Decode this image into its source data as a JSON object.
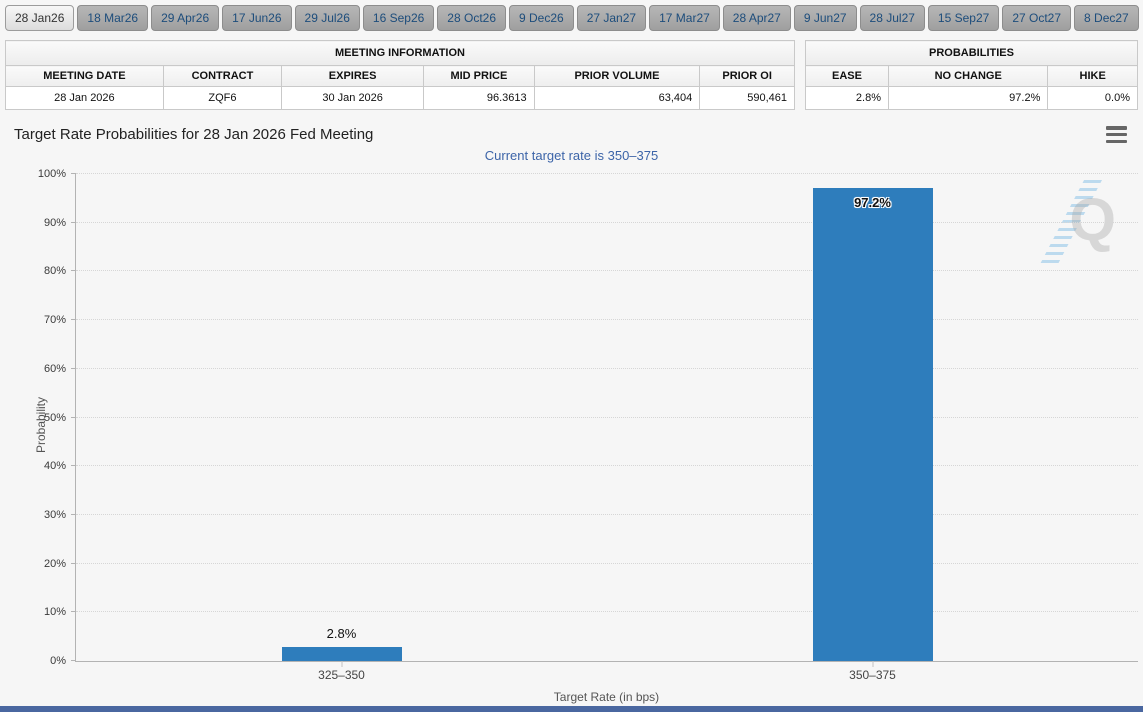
{
  "tabs": [
    {
      "label": "28 Jan26",
      "active": true
    },
    {
      "label": "18 Mar26",
      "active": false
    },
    {
      "label": "29 Apr26",
      "active": false
    },
    {
      "label": "17 Jun26",
      "active": false
    },
    {
      "label": "29 Jul26",
      "active": false
    },
    {
      "label": "16 Sep26",
      "active": false
    },
    {
      "label": "28 Oct26",
      "active": false
    },
    {
      "label": "9 Dec26",
      "active": false
    },
    {
      "label": "27 Jan27",
      "active": false
    },
    {
      "label": "17 Mar27",
      "active": false
    },
    {
      "label": "28 Apr27",
      "active": false
    },
    {
      "label": "9 Jun27",
      "active": false
    },
    {
      "label": "28 Jul27",
      "active": false
    },
    {
      "label": "15 Sep27",
      "active": false
    },
    {
      "label": "27 Oct27",
      "active": false
    },
    {
      "label": "8 Dec27",
      "active": false
    }
  ],
  "meeting_information": {
    "title": "MEETING INFORMATION",
    "columns": [
      "MEETING DATE",
      "CONTRACT",
      "EXPIRES",
      "MID PRICE",
      "PRIOR VOLUME",
      "PRIOR OI"
    ],
    "row": [
      "28 Jan 2026",
      "ZQF6",
      "30 Jan 2026",
      "96.3613",
      "63,404",
      "590,461"
    ]
  },
  "probabilities": {
    "title": "PROBABILITIES",
    "columns": [
      "EASE",
      "NO CHANGE",
      "HIKE"
    ],
    "row": [
      "2.8%",
      "97.2%",
      "0.0%"
    ]
  },
  "chart": {
    "watermark_letter": "Q",
    "menu_icon": "hamburger-icon"
  },
  "chart_data": {
    "type": "bar",
    "title": "Target Rate Probabilities for 28 Jan 2026 Fed Meeting",
    "subtitle": "Current target rate is 350–375",
    "categories": [
      "325–350",
      "350–375"
    ],
    "values": [
      2.8,
      97.2
    ],
    "bar_labels": [
      "2.8%",
      "97.2%"
    ],
    "xlabel": "Target Rate (in bps)",
    "ylabel": "Probability",
    "ylim": [
      0,
      100
    ],
    "ytick_labels": [
      "0%",
      "10%",
      "20%",
      "30%",
      "40%",
      "50%",
      "60%",
      "70%",
      "80%",
      "90%",
      "100%"
    ],
    "grid": "dotted",
    "legend": "none",
    "bar_color": "#2e7dbc"
  },
  "colors": {
    "bar_blue": "#2e7dbc",
    "subtitle_blue": "#3c64a8",
    "footer_blue": "#4a67a0",
    "tab_text_blue": "#1d4d7c"
  }
}
